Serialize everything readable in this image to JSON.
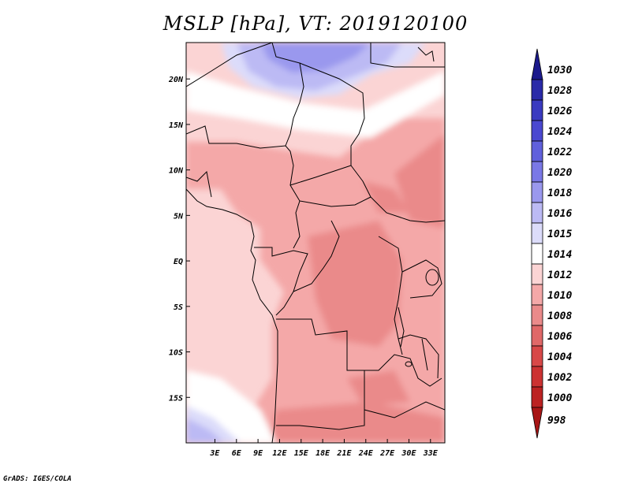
{
  "title": "MSLP [hPa], VT: 2019120100",
  "footer": "GrADS: IGES/COLA",
  "map": {
    "lon_range": [
      -1,
      35
    ],
    "lat_range": [
      -20,
      24
    ],
    "lat_labels": [
      {
        "lat": 20,
        "label": "20N"
      },
      {
        "lat": 15,
        "label": "15N"
      },
      {
        "lat": 10,
        "label": "10N"
      },
      {
        "lat": 5,
        "label": "5N"
      },
      {
        "lat": 0,
        "label": "EQ"
      },
      {
        "lat": -5,
        "label": "5S"
      },
      {
        "lat": -10,
        "label": "10S"
      },
      {
        "lat": -15,
        "label": "15S"
      }
    ],
    "lon_labels": [
      {
        "lon": 3,
        "label": "3E"
      },
      {
        "lon": 6,
        "label": "6E"
      },
      {
        "lon": 9,
        "label": "9E"
      },
      {
        "lon": 12,
        "label": "12E"
      },
      {
        "lon": 15,
        "label": "15E"
      },
      {
        "lon": 18,
        "label": "18E"
      },
      {
        "lon": 21,
        "label": "21E"
      },
      {
        "lon": 24,
        "label": "24E"
      },
      {
        "lon": 27,
        "label": "27E"
      },
      {
        "lon": 30,
        "label": "30E"
      },
      {
        "lon": 33,
        "label": "33E"
      }
    ]
  },
  "colorbar": {
    "levels": [
      "1030",
      "1028",
      "1026",
      "1024",
      "1022",
      "1020",
      "1018",
      "1016",
      "1015",
      "1014",
      "1012",
      "1010",
      "1008",
      "1006",
      "1004",
      "1002",
      "1000",
      "998"
    ],
    "colors": [
      "#1c1a8c",
      "#2a2aa8",
      "#3a3ac0",
      "#4a48d0",
      "#6060dc",
      "#7a78e6",
      "#9a98ee",
      "#bcbaf4",
      "#dcdcfa",
      "#ffffff",
      "#fbd4d4",
      "#f4a8a8",
      "#ea8a8a",
      "#e06868",
      "#d84848",
      "#cc3232",
      "#bc2222",
      "#a81616"
    ]
  }
}
